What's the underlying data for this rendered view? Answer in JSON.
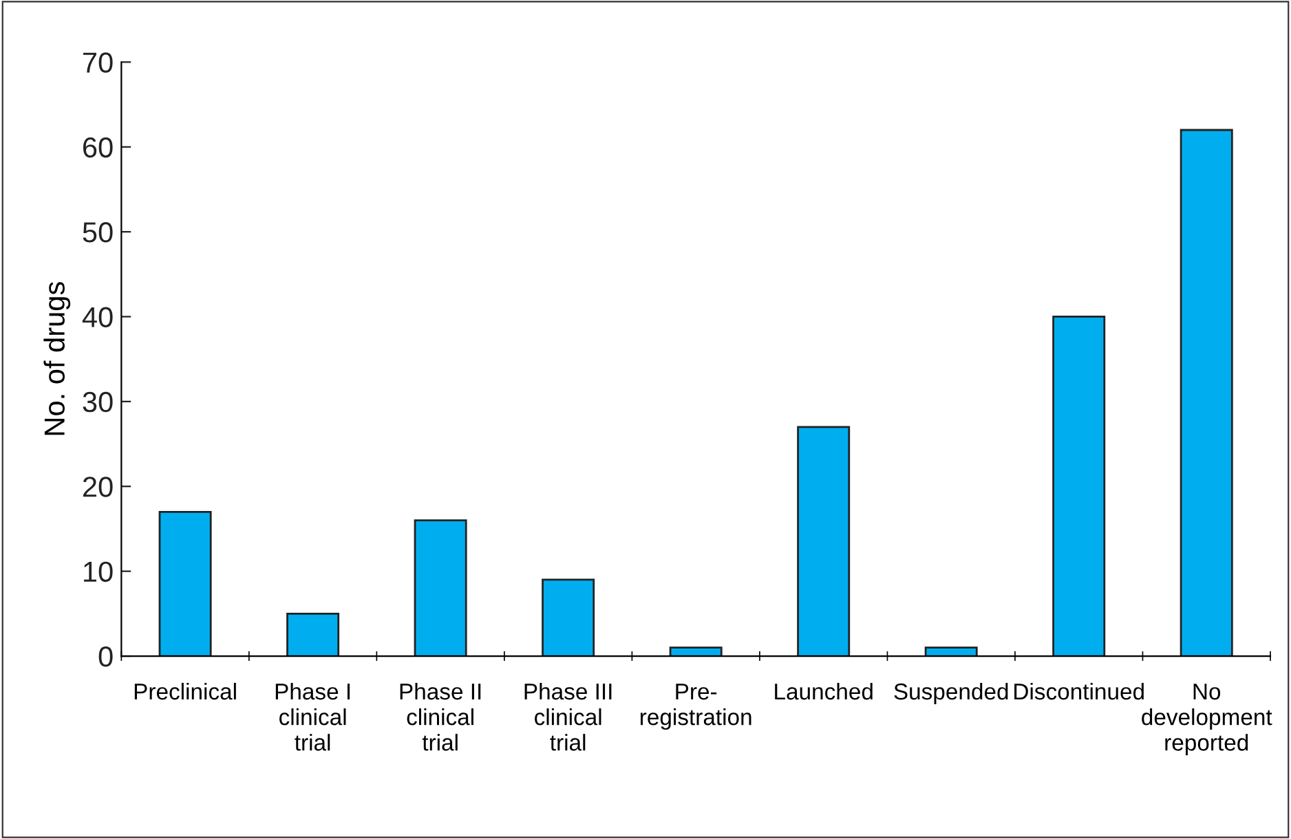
{
  "chart_data": {
    "type": "bar",
    "ylabel": "No. of drugs",
    "categories": [
      "Preclinical",
      "Phase I\nclinical\ntrial",
      "Phase II\nclinical\ntrial",
      "Phase III\nclinical\ntrial",
      "Pre-\nregistration",
      "Launched",
      "Suspended",
      "Discontinued",
      "No\ndevelopment\nreported"
    ],
    "values": [
      17,
      5,
      16,
      9,
      1,
      27,
      1,
      40,
      62
    ],
    "color": "#00aeef",
    "ylim": [
      0,
      70
    ],
    "yticks": [
      0,
      10,
      20,
      30,
      40,
      50,
      60,
      70
    ],
    "grid": false,
    "legend": false
  }
}
